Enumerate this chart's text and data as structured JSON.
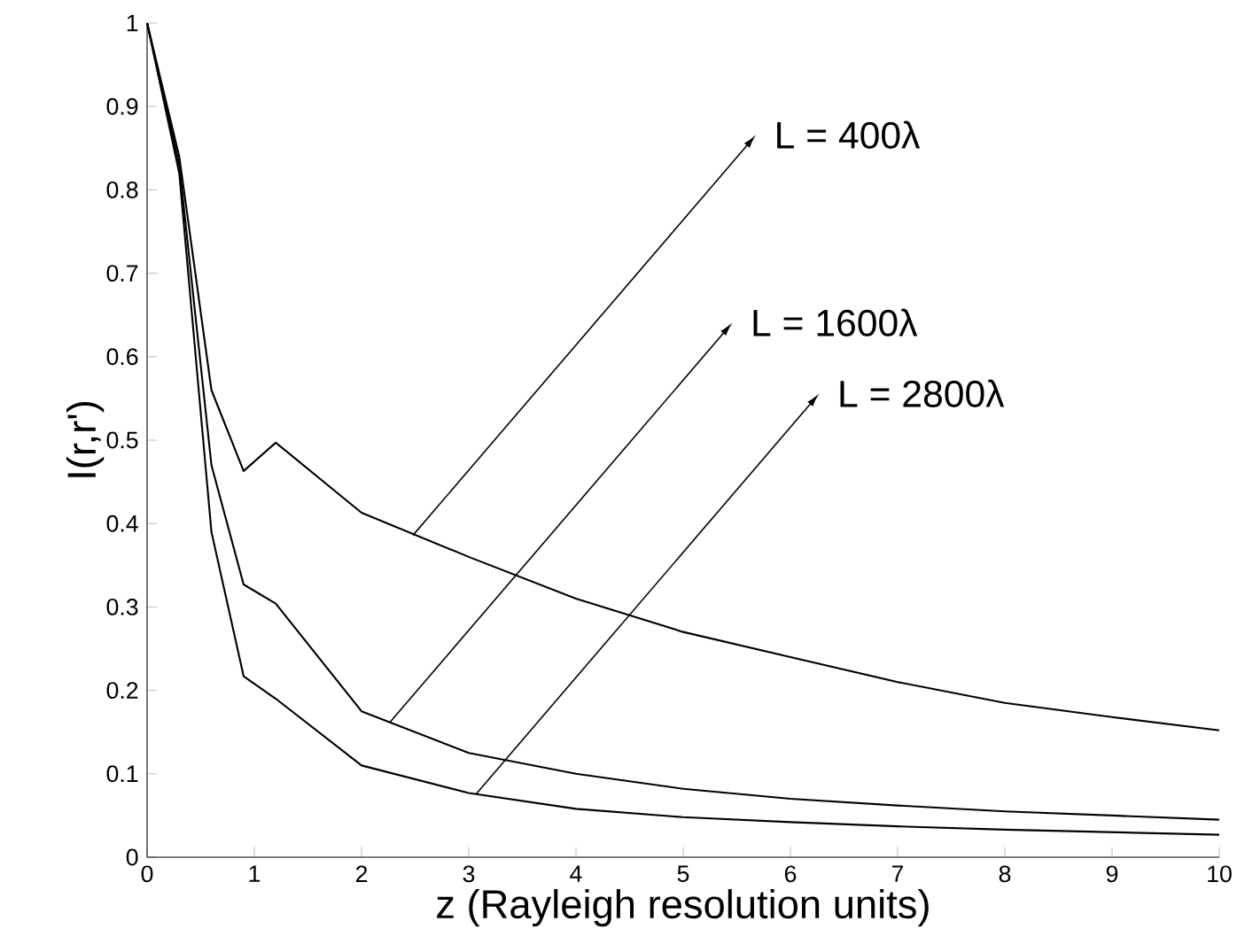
{
  "chart_data": {
    "type": "line",
    "xlabel": "z (Rayleigh resolution units)",
    "ylabel": "I(r,r')",
    "xlim": [
      0,
      10
    ],
    "ylim": [
      0,
      1
    ],
    "xticks": [
      0,
      1,
      2,
      3,
      4,
      5,
      6,
      7,
      8,
      9,
      10
    ],
    "yticks": [
      0,
      0.1,
      0.2,
      0.3,
      0.4,
      0.5,
      0.6,
      0.7,
      0.8,
      0.9,
      1
    ],
    "x": [
      0,
      0.3,
      0.6,
      0.9,
      1.2,
      2,
      3,
      4,
      5,
      6,
      7,
      8,
      9,
      10
    ],
    "series": [
      {
        "color": "#000000",
        "values": [
          1.0,
          0.84,
          0.56,
          0.463,
          0.497,
          0.413,
          0.36,
          0.31,
          0.27,
          0.24,
          0.21,
          0.185,
          0.168,
          0.152
        ]
      },
      {
        "color": "#000000",
        "values": [
          1.0,
          0.83,
          0.47,
          0.327,
          0.304,
          0.175,
          0.125,
          0.1,
          0.082,
          0.07,
          0.062,
          0.055,
          0.05,
          0.045
        ]
      },
      {
        "color": "#000000",
        "values": [
          1.0,
          0.82,
          0.39,
          0.217,
          0.19,
          0.11,
          0.077,
          0.058,
          0.048,
          0.042,
          0.037,
          0.033,
          0.03,
          0.027
        ]
      }
    ],
    "annotations": [
      {
        "text": "L  = 400λ",
        "x": 2.48,
        "y": 0.386
      },
      {
        "text": "L = 1600λ",
        "x": 2.26,
        "y": 0.161
      },
      {
        "text": "L = 2800λ",
        "x": 3.07,
        "y": 0.076
      }
    ],
    "marker": "none",
    "line_style": "solid"
  }
}
